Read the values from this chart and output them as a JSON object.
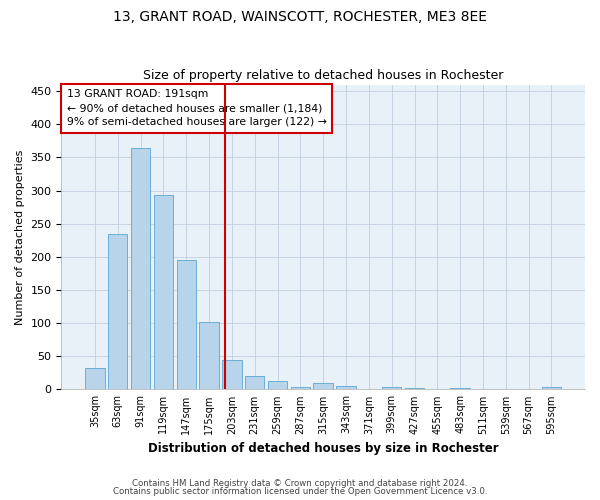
{
  "title1": "13, GRANT ROAD, WAINSCOTT, ROCHESTER, ME3 8EE",
  "title2": "Size of property relative to detached houses in Rochester",
  "xlabel": "Distribution of detached houses by size in Rochester",
  "ylabel": "Number of detached properties",
  "bar_labels": [
    "35sqm",
    "63sqm",
    "91sqm",
    "119sqm",
    "147sqm",
    "175sqm",
    "203sqm",
    "231sqm",
    "259sqm",
    "287sqm",
    "315sqm",
    "343sqm",
    "371sqm",
    "399sqm",
    "427sqm",
    "455sqm",
    "483sqm",
    "511sqm",
    "539sqm",
    "567sqm",
    "595sqm"
  ],
  "bar_values": [
    32,
    234,
    365,
    293,
    196,
    101,
    44,
    21,
    13,
    4,
    10,
    5,
    0,
    4,
    2,
    0,
    2,
    0,
    0,
    0,
    3
  ],
  "bar_color": "#b8d4ea",
  "bar_edge_color": "#6aaed6",
  "vline_x": 5.72,
  "vline_color": "#cc0000",
  "annotation_text": "13 GRANT ROAD: 191sqm\n← 90% of detached houses are smaller (1,184)\n9% of semi-detached houses are larger (122) →",
  "annotation_box_color": "#ffffff",
  "annotation_box_edge": "#cc0000",
  "footer1": "Contains HM Land Registry data © Crown copyright and database right 2024.",
  "footer2": "Contains public sector information licensed under the Open Government Licence v3.0.",
  "bg_color": "#ffffff",
  "plot_bg_color": "#e8f0f8",
  "ylim": [
    0,
    460
  ],
  "yticks": [
    0,
    50,
    100,
    150,
    200,
    250,
    300,
    350,
    400,
    450
  ]
}
